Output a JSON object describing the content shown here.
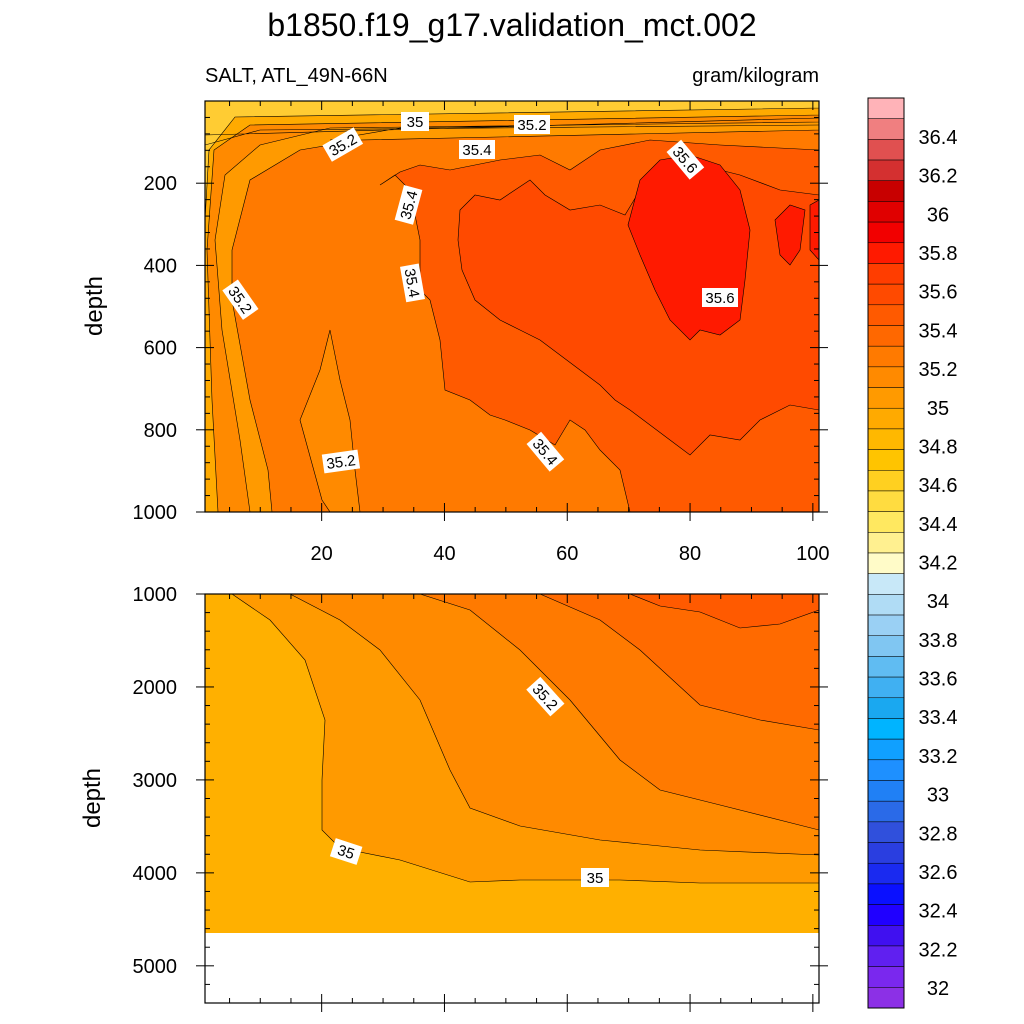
{
  "title": "b1850.f19_g17.validation_mct.002",
  "subtitle_left": "SALT, ATL_49N-66N",
  "subtitle_right": "gram/kilogram",
  "chart_data": [
    {
      "type": "contour",
      "panel": "upper",
      "variable": "SALT",
      "region": "ATL_49N-66N",
      "units": "gram/kilogram",
      "ylabel": "depth",
      "xlim": [
        1,
        101
      ],
      "ylim": [
        1000,
        0
      ],
      "xticks": [
        20,
        40,
        60,
        80,
        100
      ],
      "xtick_labels": [
        "20",
        "40",
        "60",
        "80",
        "100"
      ],
      "yticks": [
        200,
        400,
        600,
        800,
        1000
      ],
      "ytick_labels": [
        "200",
        "400",
        "600",
        "800",
        "1000"
      ],
      "contour_labels": [
        "35",
        "35.2",
        "35.2",
        "35.4",
        "35.4",
        "35.4",
        "35.6",
        "35.6",
        "35.2",
        "35.2",
        "35.4"
      ]
    },
    {
      "type": "contour",
      "panel": "lower",
      "variable": "SALT",
      "units": "gram/kilogram",
      "ylabel": "depth",
      "xlim": [
        1,
        101
      ],
      "ylim": [
        5400,
        1000
      ],
      "yticks": [
        1000,
        2000,
        3000,
        4000,
        5000
      ],
      "ytick_labels": [
        "1000",
        "2000",
        "3000",
        "4000",
        "5000"
      ],
      "missing_below_depth": 4620,
      "contour_labels": [
        "35.2",
        "35",
        "35"
      ]
    }
  ],
  "colorbar": {
    "levels": [
      "36.4",
      "36.2",
      "36",
      "35.8",
      "35.6",
      "35.4",
      "35.2",
      "35",
      "34.8",
      "34.6",
      "34.4",
      "34.2",
      "34",
      "33.8",
      "33.6",
      "33.4",
      "33.2",
      "33",
      "32.8",
      "32.6",
      "32.4",
      "32.2",
      "32"
    ],
    "colors": [
      "#ffb3b8",
      "#f07f80",
      "#e05050",
      "#d43030",
      "#c80000",
      "#e00000",
      "#f20000",
      "#ff1a00",
      "#ff3d00",
      "#ff4a00",
      "#ff5a00",
      "#ff6800",
      "#ff7a00",
      "#ff8a00",
      "#ff9a00",
      "#ffaa00",
      "#ffb800",
      "#ffc400",
      "#ffd020",
      "#ffdc40",
      "#ffe860",
      "#fff090",
      "#fffbc8",
      "#c8e8f8",
      "#b0dcf5",
      "#9ad0f4",
      "#80c6f2",
      "#60bcf2",
      "#40b0f2",
      "#1aa8f0",
      "#00b4ff",
      "#10a0ff",
      "#1e90ff",
      "#2080f5",
      "#2a6ae8",
      "#3050dc",
      "#2a3ee0",
      "#1a2af0",
      "#0a10ff",
      "#2000ff",
      "#4010f0",
      "#6020f0",
      "#7a28ee",
      "#8c30e6"
    ]
  }
}
